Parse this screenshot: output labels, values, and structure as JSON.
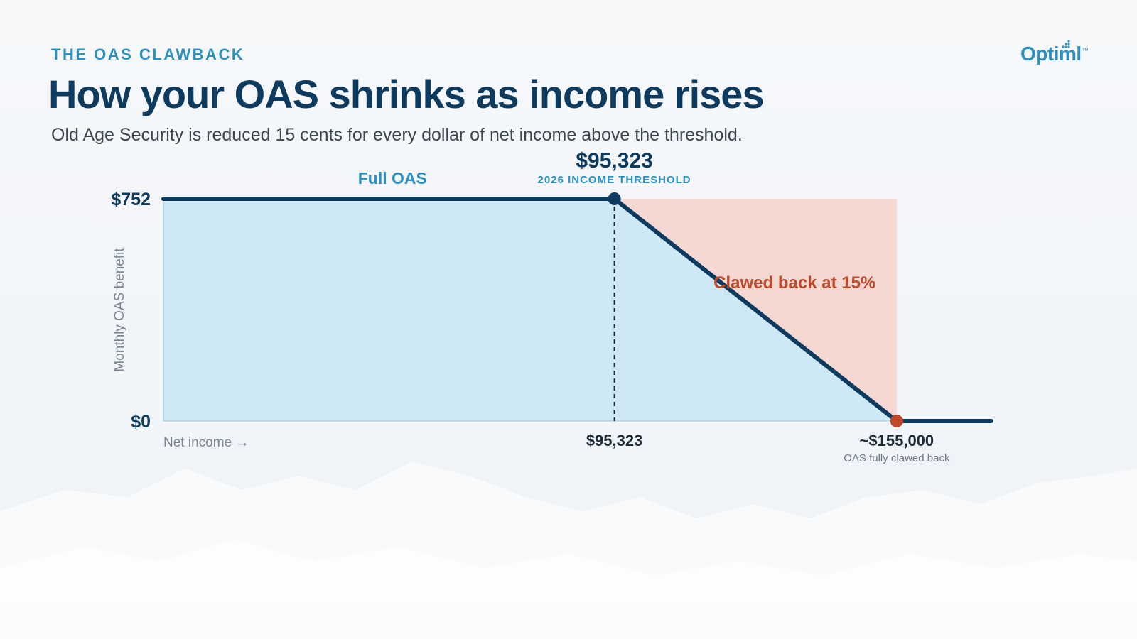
{
  "header": {
    "eyebrow": "THE OAS CLAWBACK",
    "title": "How your OAS shrinks as income rises",
    "subtitle": "Old Age Security is reduced 15 cents for every dollar of net income above the threshold."
  },
  "brand": {
    "name": "Optiml",
    "tm": "™"
  },
  "chart_data": {
    "type": "line",
    "x": [
      0,
      95323,
      155000,
      175000
    ],
    "y": [
      752,
      752,
      0,
      0
    ],
    "xlim": [
      0,
      175000
    ],
    "ylim": [
      0,
      752
    ],
    "ylabel": "Monthly OAS benefit",
    "xlabel": "Net income →",
    "y_ticks": [
      "$752",
      "$0"
    ],
    "x_ticks": [
      "$95,323",
      "~$155,000"
    ],
    "threshold": {
      "x": 95323,
      "value_label": "$95,323",
      "caption": "2026 INCOME THRESHOLD"
    },
    "clawback_end": {
      "x": 155000,
      "caption": "OAS fully clawed back"
    },
    "annotations": {
      "full": "Full OAS",
      "clawback": "Clawed back at 15%"
    },
    "colors": {
      "line": "#0d3a5f",
      "benefit_fill": "#cfe8f5",
      "clawback_fill": "#f5d8d2",
      "clawback_text": "#c0492b",
      "accent": "#2b8fc0",
      "end_marker": "#c0492b"
    }
  }
}
